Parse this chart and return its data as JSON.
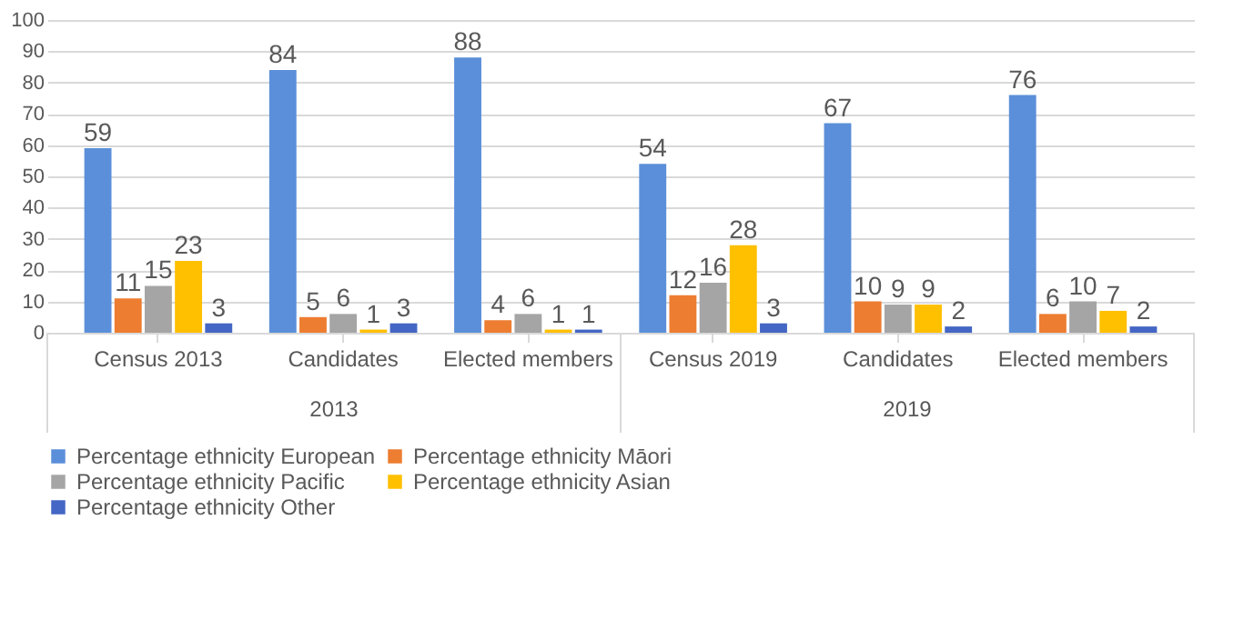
{
  "chart_data": {
    "type": "bar",
    "categories": [
      "Census 2013",
      "Candidates",
      "Elected members",
      "Census 2019",
      "Candidates",
      "Elected members"
    ],
    "series": [
      {
        "name": "Percentage ethnicity European",
        "color": "#5b8fd9",
        "values": [
          59,
          84,
          88,
          54,
          67,
          76
        ]
      },
      {
        "name": "Percentage ethnicity Māori",
        "color": "#ed7d31",
        "values": [
          11,
          5,
          4,
          12,
          10,
          6
        ]
      },
      {
        "name": "Percentage ethnicity Pacific",
        "color": "#a5a5a5",
        "values": [
          15,
          6,
          6,
          16,
          9,
          10
        ]
      },
      {
        "name": "Percentage ethnicity Asian",
        "color": "#ffc000",
        "values": [
          23,
          1,
          1,
          28,
          9,
          7
        ]
      },
      {
        "name": "Percentage ethnicity Other",
        "color": "#4466c4",
        "values": [
          3,
          3,
          1,
          3,
          2,
          2
        ]
      }
    ],
    "annotations": [
      "2013",
      "2019"
    ],
    "ylim": [
      0,
      100
    ],
    "yticks": [
      0,
      10,
      20,
      30,
      40,
      50,
      60,
      70,
      80,
      90,
      100
    ],
    "grid": "y",
    "legend": "bottom",
    "data_labels": true
  }
}
